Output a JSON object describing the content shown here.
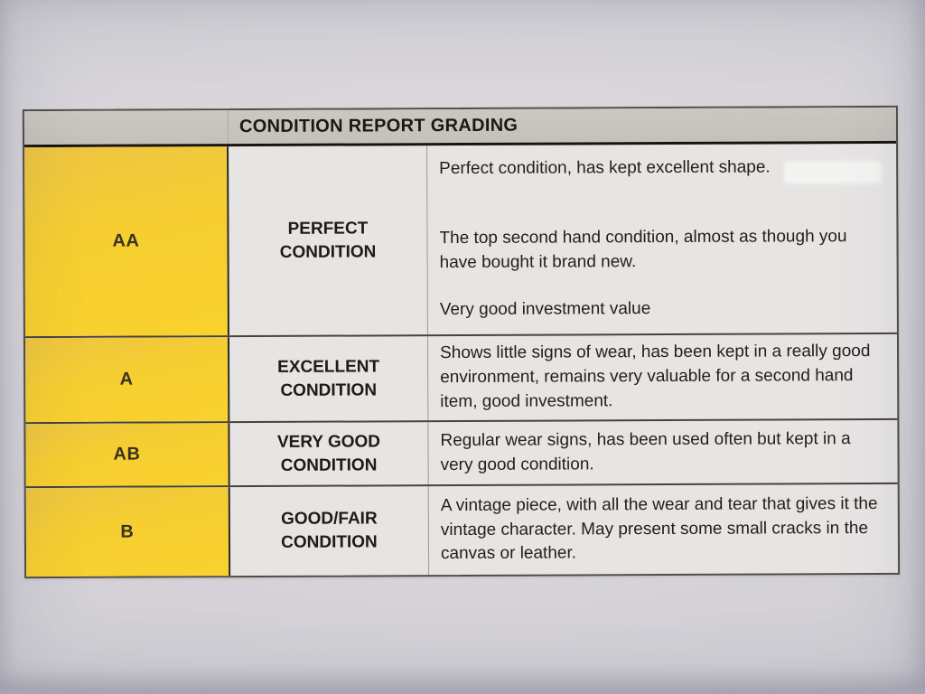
{
  "document": {
    "title": "CONDITION REPORT GRADING",
    "rows": [
      {
        "grade": "AA",
        "condition": "PERFECT CONDITION",
        "description_paragraphs": [
          "Perfect condition, has kept excellent shape.",
          "The top second hand condition, almost as though you have bought it brand new.",
          "Very good investment value"
        ]
      },
      {
        "grade": "A",
        "condition": "EXCELLENT CONDITION",
        "description_paragraphs": [
          "Shows little signs of wear, has been kept in a really good environment, remains very valuable for a second hand item, good investment."
        ]
      },
      {
        "grade": "AB",
        "condition": "VERY GOOD CONDITION",
        "description_paragraphs": [
          "Regular wear signs, has been used often but kept in a very good condition."
        ]
      },
      {
        "grade": "B",
        "condition": "GOOD/FAIR CONDITION",
        "description_paragraphs": [
          "A vintage piece, with all the wear and tear that gives it the vintage character. May present some small cracks in the canvas or leather."
        ]
      }
    ],
    "colors": {
      "grade_cell_yellow": "#F6CE31",
      "header_gray": "#C7C3BD",
      "body_cell_gray": "#E7E5E4",
      "paper_gray": "#D6D4D9",
      "border_dark": "#2C2823"
    }
  }
}
